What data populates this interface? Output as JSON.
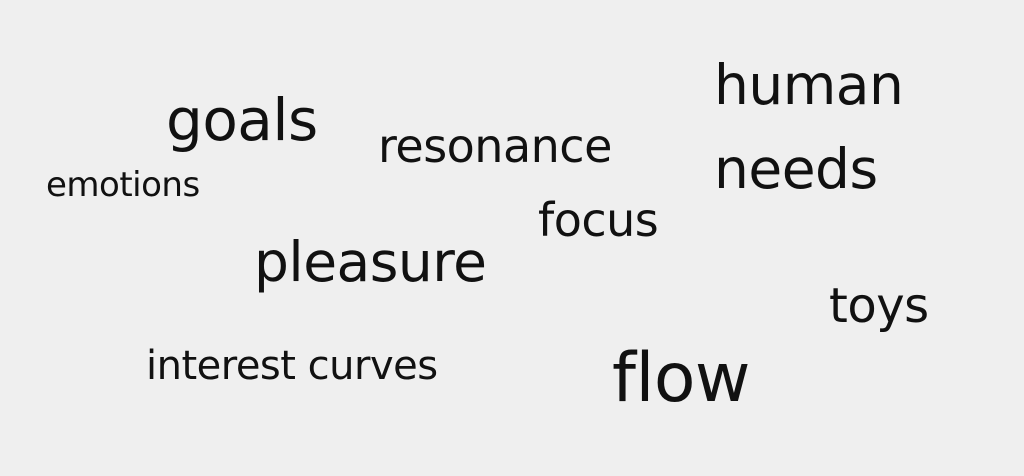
{
  "words": {
    "goals": "goals",
    "resonance": "resonance",
    "emotions": "emotions",
    "human": "human",
    "needs": "needs",
    "focus": "focus",
    "pleasure": "pleasure",
    "toys": "toys",
    "interest_curves": "interest curves",
    "flow": "flow"
  }
}
